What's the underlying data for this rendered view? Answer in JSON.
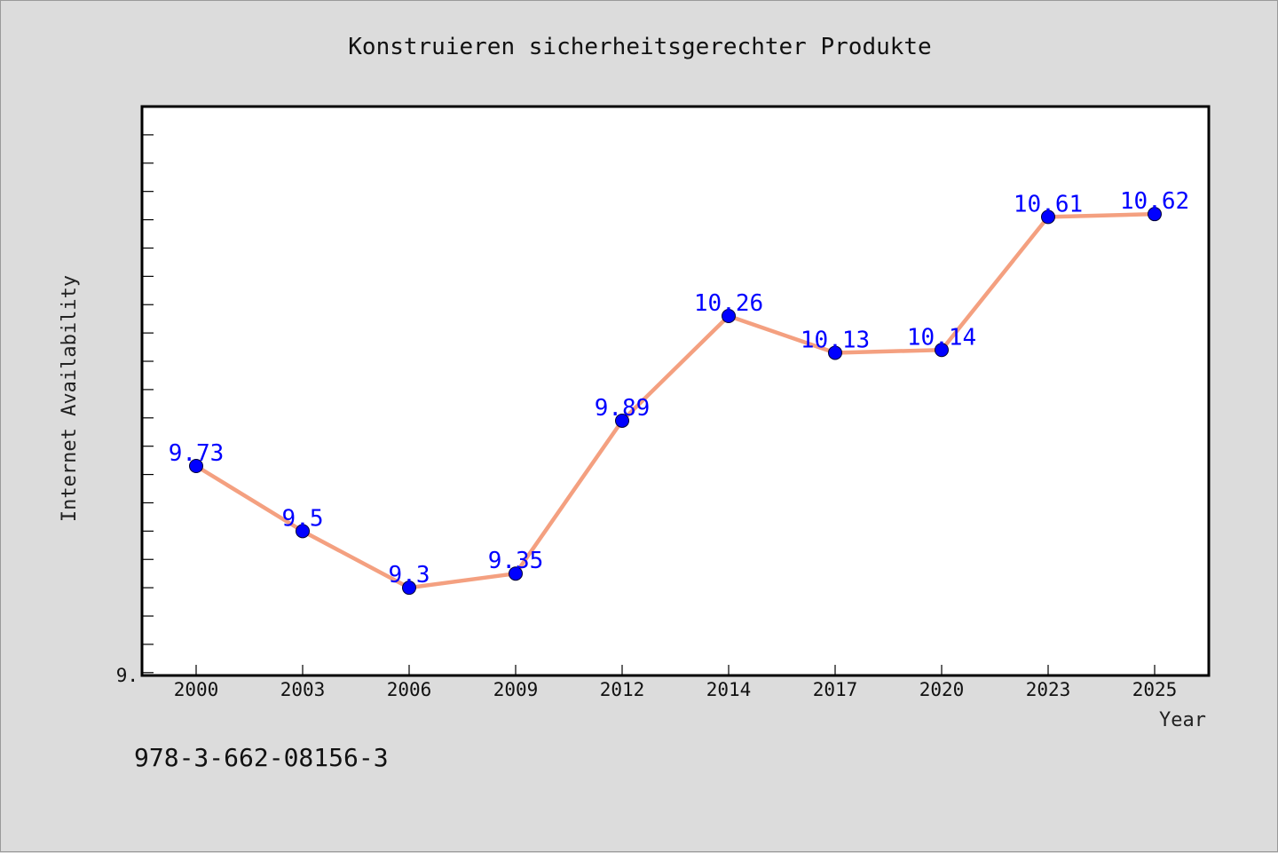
{
  "chart_data": {
    "type": "line",
    "title": "Konstruieren sicherheitsgerechter Produkte",
    "xlabel": "Year",
    "ylabel": "Internet Availability",
    "categories": [
      "2000",
      "2003",
      "2006",
      "2009",
      "2012",
      "2014",
      "2017",
      "2020",
      "2023",
      "2025"
    ],
    "values": [
      9.73,
      9.5,
      9.3,
      9.35,
      9.89,
      10.26,
      10.13,
      10.14,
      10.61,
      10.62
    ],
    "data_labels": [
      "9.73",
      "9.5",
      "9.3",
      "9.35",
      "9.89",
      "10.26",
      "10.13",
      "10.14",
      "10.61",
      "10.62"
    ],
    "y_tick_label": "9.",
    "ylim": [
      8.99,
      11.0
    ],
    "grid": false,
    "line_color": "#f4a080",
    "marker_color": "#0000ff",
    "label_color": "#0000ff"
  },
  "footer": {
    "isbn": "978-3-662-08156-3"
  }
}
